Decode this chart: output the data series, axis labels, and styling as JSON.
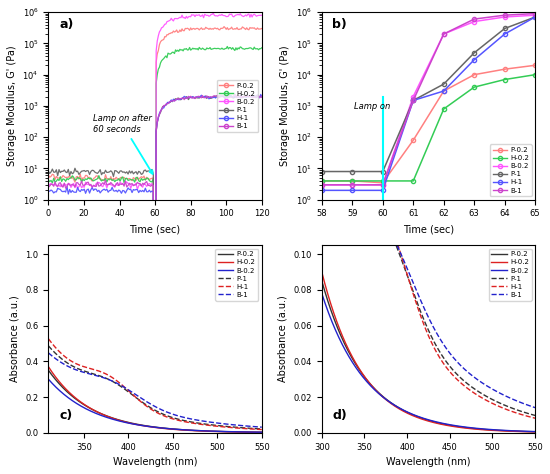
{
  "series_names": [
    "P-0.2",
    "H-0.2",
    "B-0.2",
    "P-1",
    "H-1",
    "B-1"
  ],
  "colors_ab": {
    "P-0.2": "#ff8080",
    "H-0.2": "#33cc55",
    "B-0.2": "#ff55ff",
    "P-1": "#666666",
    "H-1": "#5555ff",
    "B-1": "#cc44cc"
  },
  "colors_cd": {
    "P-0.2": "#333333",
    "H-0.2": "#dd2222",
    "B-0.2": "#2222cc",
    "P-1": "#333333",
    "H-1": "#dd2222",
    "B-1": "#2222cc"
  },
  "panel_a": {
    "baselines": {
      "P-0.2": 5.0,
      "H-0.2": 4.5,
      "B-0.2": 3.0,
      "P-1": 8.0,
      "H-1": 2.0,
      "B-1": 3.0
    },
    "plateaus": {
      "P-0.2": 300000.0,
      "H-0.2": 70000.0,
      "B-0.2": 800000.0,
      "P-1": 2000,
      "H-1": 2000,
      "B-1": 2000
    },
    "xlim": [
      0,
      120
    ],
    "ylim": [
      1,
      1000000.0
    ],
    "xlabel": "Time (sec)",
    "ylabel": "Storage Modulus, G' (Pa)",
    "label": "a)"
  },
  "panel_b": {
    "xlim": [
      58,
      65
    ],
    "ylim": [
      1,
      1000000.0
    ],
    "xlabel": "Time (sec)",
    "ylabel": "Storage Modulus, G' (Pa)",
    "label": "b)",
    "x": [
      58,
      59,
      60,
      61,
      62,
      63,
      64,
      65
    ],
    "series": {
      "P-0.2": [
        4.0,
        4.0,
        3.5,
        80,
        3000,
        10000,
        15000,
        20000
      ],
      "H-0.2": [
        4.0,
        4.0,
        4.0,
        4.0,
        800,
        4000,
        7000,
        10000
      ],
      "B-0.2": [
        3.0,
        3.0,
        3.0,
        2000,
        200000,
        500000,
        700000,
        800000
      ],
      "P-1": [
        8.0,
        8.0,
        8.0,
        1500,
        5000,
        50000,
        300000,
        700000
      ],
      "H-1": [
        2.0,
        2.0,
        2.0,
        1500,
        3000,
        30000,
        200000,
        700000
      ],
      "B-1": [
        3.0,
        3.0,
        3.0,
        1500,
        200000,
        600000,
        800000,
        900000
      ]
    }
  },
  "panel_c": {
    "xlim": [
      310,
      550
    ],
    "ylim": [
      0.0,
      1.05
    ],
    "xlabel": "Wavelength (nm)",
    "ylabel": "Absorbance (a.u.)",
    "label": "c)"
  },
  "panel_d": {
    "xlim": [
      300,
      550
    ],
    "ylim": [
      0.0,
      0.105
    ],
    "xlabel": "Wavelength (nm)",
    "ylabel": "Absorbance (a.u.)",
    "label": "d)"
  }
}
